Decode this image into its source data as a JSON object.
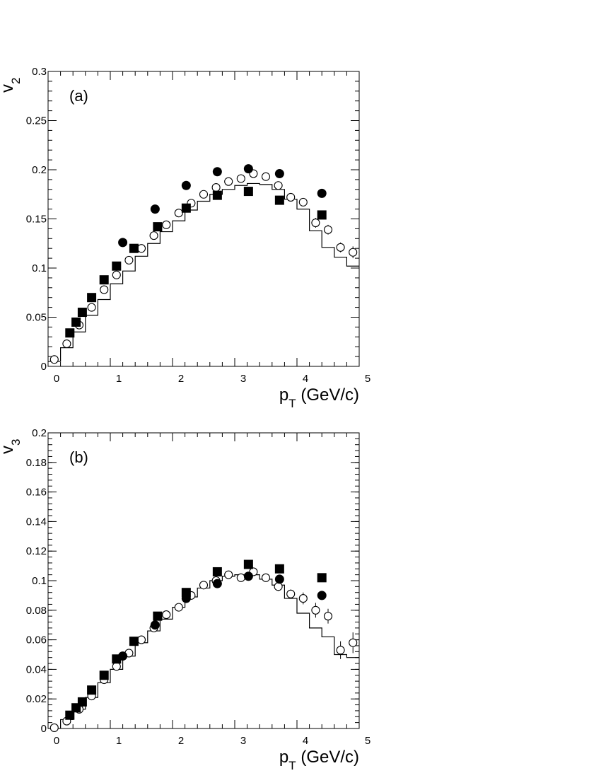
{
  "chart_data": [
    {
      "type": "scatter",
      "panel_label": "(a)",
      "ylabel_main": "v",
      "ylabel_sub": "2",
      "xlabel_main": "p",
      "xlabel_sub": "T",
      "xlabel_rest": "(GeV/c)",
      "xlim": [
        0,
        5
      ],
      "ylim": [
        0,
        0.3
      ],
      "x_ticks": [
        {
          "v": 0,
          "t": "0"
        },
        {
          "v": 1,
          "t": "1"
        },
        {
          "v": 2,
          "t": "2"
        },
        {
          "v": 3,
          "t": "3"
        },
        {
          "v": 4,
          "t": "4"
        },
        {
          "v": 5,
          "t": "5"
        }
      ],
      "y_ticks": [
        {
          "v": 0,
          "t": "0"
        },
        {
          "v": 0.05,
          "t": "0.05"
        },
        {
          "v": 0.1,
          "t": "0.1"
        },
        {
          "v": 0.15,
          "t": "0.15"
        },
        {
          "v": 0.2,
          "t": "0.2"
        },
        {
          "v": 0.25,
          "t": "0.25"
        },
        {
          "v": 0.3,
          "t": "0.3"
        }
      ],
      "x_minor_step": 0.2,
      "y_minor_step": 0.01,
      "series": [
        {
          "marker": "open-circle",
          "x": [
            0.1,
            0.3,
            0.5,
            0.7,
            0.9,
            1.1,
            1.3,
            1.5,
            1.7,
            1.9,
            2.1,
            2.3,
            2.5,
            2.7,
            2.9,
            3.1,
            3.3,
            3.5,
            3.7,
            3.9,
            4.1,
            4.3,
            4.5,
            4.7,
            4.9
          ],
          "y": [
            0.007,
            0.023,
            0.042,
            0.06,
            0.078,
            0.093,
            0.108,
            0.12,
            0.133,
            0.144,
            0.156,
            0.166,
            0.175,
            0.182,
            0.188,
            0.191,
            0.196,
            0.193,
            0.184,
            0.172,
            0.167,
            0.146,
            0.139,
            0.121,
            0.116
          ],
          "err": [
            0.002,
            0.002,
            0.002,
            0.002,
            0.002,
            0.002,
            0.002,
            0.002,
            0.002,
            0.002,
            0.002,
            0.002,
            0.002,
            0.002,
            0.002,
            0.002,
            0.002,
            0.002,
            0.003,
            0.003,
            0.004,
            0.005,
            0.005,
            0.005,
            0.006
          ]
        },
        {
          "marker": "filled-circle",
          "x": [
            1.2,
            1.72,
            2.22,
            2.72,
            3.22,
            3.72,
            4.4
          ],
          "y": [
            0.126,
            0.16,
            0.184,
            0.198,
            0.201,
            0.196,
            0.176
          ]
        },
        {
          "marker": "filled-square",
          "x": [
            0.35,
            0.45,
            0.55,
            0.7,
            0.9,
            1.1,
            1.38,
            1.76,
            2.22,
            2.72,
            3.22,
            3.72,
            4.4
          ],
          "y": [
            0.034,
            0.045,
            0.055,
            0.07,
            0.088,
            0.102,
            0.12,
            0.142,
            0.161,
            0.174,
            0.178,
            0.169,
            0.154
          ]
        },
        {
          "marker": "step-line",
          "edges": [
            0.0,
            0.2,
            0.4,
            0.6,
            0.8,
            1.0,
            1.2,
            1.4,
            1.6,
            1.8,
            2.0,
            2.2,
            2.4,
            2.6,
            2.8,
            3.0,
            3.2,
            3.4,
            3.6,
            3.8,
            4.0,
            4.2,
            4.4,
            4.6,
            4.8,
            5.0
          ],
          "y": [
            0.005,
            0.019,
            0.035,
            0.052,
            0.068,
            0.084,
            0.097,
            0.112,
            0.125,
            0.137,
            0.148,
            0.159,
            0.168,
            0.175,
            0.18,
            0.184,
            0.186,
            0.185,
            0.18,
            0.17,
            0.16,
            0.138,
            0.121,
            0.111,
            0.102
          ]
        }
      ]
    },
    {
      "type": "scatter",
      "panel_label": "(b)",
      "ylabel_main": "v",
      "ylabel_sub": "3",
      "xlabel_main": "p",
      "xlabel_sub": "T",
      "xlabel_rest": "(GeV/c)",
      "xlim": [
        0,
        5
      ],
      "ylim": [
        0,
        0.2
      ],
      "x_ticks": [
        {
          "v": 0,
          "t": "0"
        },
        {
          "v": 1,
          "t": "1"
        },
        {
          "v": 2,
          "t": "2"
        },
        {
          "v": 3,
          "t": "3"
        },
        {
          "v": 4,
          "t": "4"
        },
        {
          "v": 5,
          "t": "5"
        }
      ],
      "y_ticks": [
        {
          "v": 0,
          "t": "0"
        },
        {
          "v": 0.02,
          "t": "0.02"
        },
        {
          "v": 0.04,
          "t": "0.04"
        },
        {
          "v": 0.06,
          "t": "0.06"
        },
        {
          "v": 0.08,
          "t": "0.08"
        },
        {
          "v": 0.1,
          "t": "0.1"
        },
        {
          "v": 0.12,
          "t": "0.12"
        },
        {
          "v": 0.14,
          "t": "0.14"
        },
        {
          "v": 0.16,
          "t": "0.16"
        },
        {
          "v": 0.18,
          "t": "0.18"
        },
        {
          "v": 0.2,
          "t": "0.2"
        }
      ],
      "x_minor_step": 0.2,
      "y_minor_step": 0.004,
      "series": [
        {
          "marker": "open-circle",
          "x": [
            0.1,
            0.3,
            0.5,
            0.7,
            0.9,
            1.1,
            1.3,
            1.5,
            1.7,
            1.9,
            2.1,
            2.3,
            2.5,
            2.7,
            2.9,
            3.1,
            3.3,
            3.5,
            3.7,
            3.9,
            4.1,
            4.3,
            4.5,
            4.7,
            4.9
          ],
          "y": [
            0.0005,
            0.005,
            0.013,
            0.022,
            0.033,
            0.042,
            0.051,
            0.06,
            0.068,
            0.077,
            0.082,
            0.09,
            0.097,
            0.1,
            0.104,
            0.102,
            0.106,
            0.102,
            0.096,
            0.091,
            0.088,
            0.08,
            0.076,
            0.053,
            0.058
          ],
          "err": [
            0.001,
            0.001,
            0.001,
            0.001,
            0.001,
            0.001,
            0.001,
            0.001,
            0.001,
            0.001,
            0.001,
            0.001,
            0.001,
            0.001,
            0.002,
            0.002,
            0.002,
            0.002,
            0.003,
            0.003,
            0.004,
            0.005,
            0.005,
            0.006,
            0.007
          ]
        },
        {
          "marker": "filled-circle",
          "x": [
            1.2,
            1.72,
            2.22,
            2.72,
            3.22,
            3.72,
            4.4
          ],
          "y": [
            0.049,
            0.07,
            0.088,
            0.098,
            0.103,
            0.101,
            0.09
          ]
        },
        {
          "marker": "filled-square",
          "x": [
            0.35,
            0.45,
            0.55,
            0.7,
            0.9,
            1.1,
            1.38,
            1.76,
            2.22,
            2.72,
            3.22,
            3.72,
            4.4
          ],
          "y": [
            0.009,
            0.014,
            0.018,
            0.026,
            0.036,
            0.047,
            0.059,
            0.076,
            0.092,
            0.106,
            0.111,
            0.108,
            0.102
          ]
        },
        {
          "marker": "step-line",
          "edges": [
            0.0,
            0.2,
            0.4,
            0.6,
            0.8,
            1.0,
            1.2,
            1.4,
            1.6,
            1.8,
            2.0,
            2.2,
            2.4,
            2.6,
            2.8,
            3.0,
            3.2,
            3.4,
            3.6,
            3.8,
            4.0,
            4.2,
            4.4,
            4.6,
            4.8,
            5.0
          ],
          "y": [
            0.0,
            0.006,
            0.013,
            0.021,
            0.031,
            0.04,
            0.049,
            0.058,
            0.066,
            0.074,
            0.082,
            0.089,
            0.095,
            0.1,
            0.103,
            0.104,
            0.104,
            0.101,
            0.097,
            0.088,
            0.078,
            0.068,
            0.062,
            0.05,
            0.048
          ]
        }
      ]
    }
  ]
}
